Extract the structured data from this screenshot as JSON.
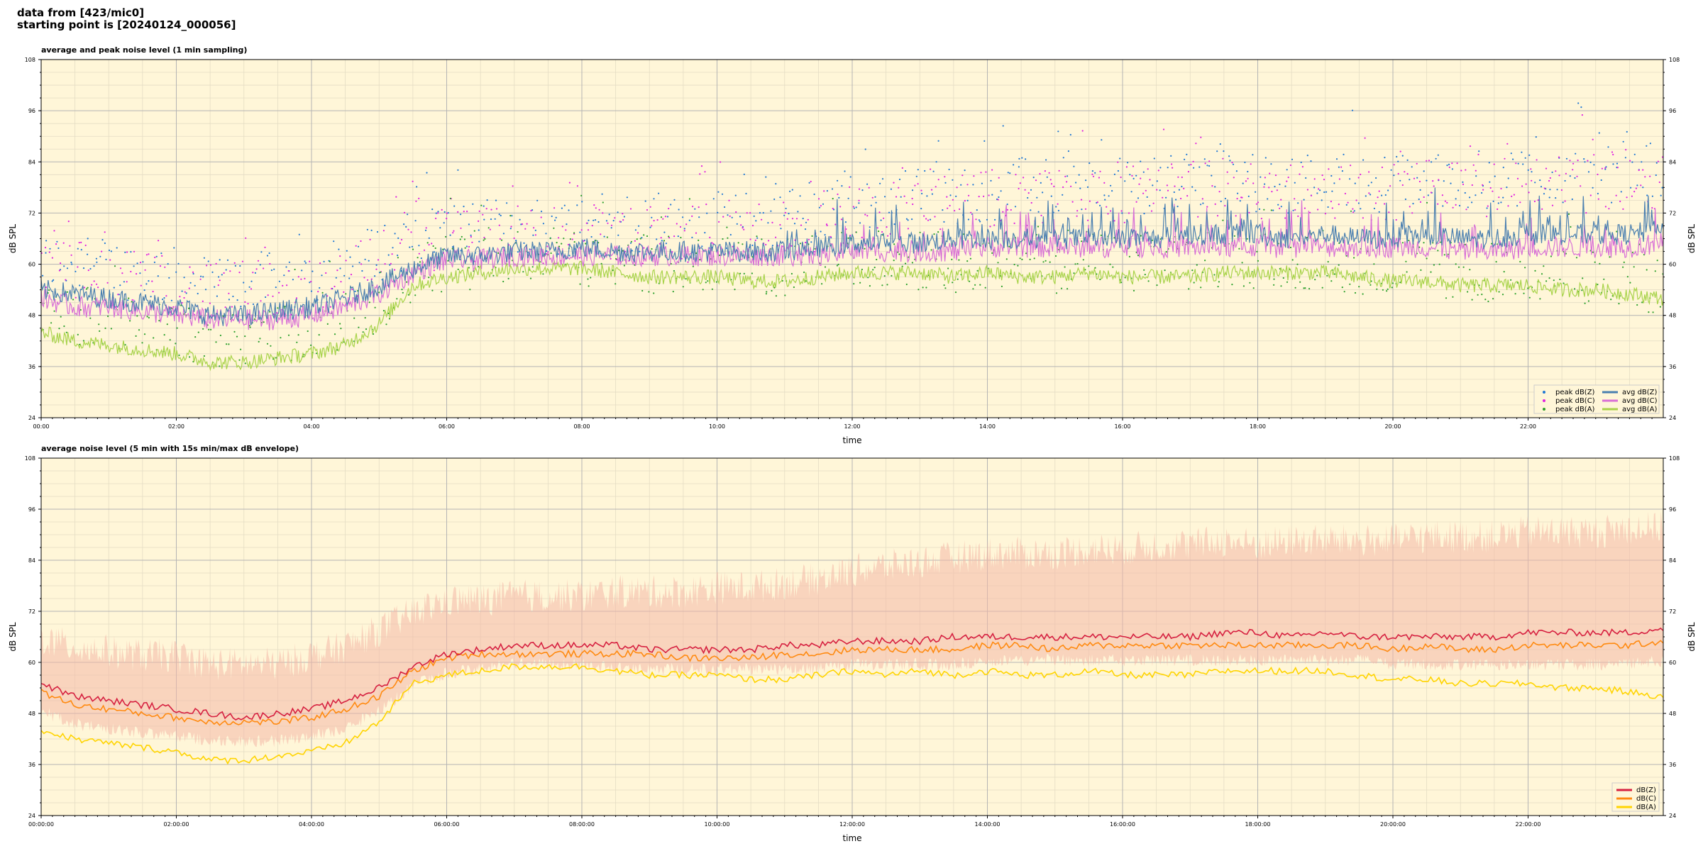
{
  "header": {
    "line1": "data from [423/mic0]",
    "line2": "starting point is [20240124_000056]"
  },
  "colors": {
    "background": "#fff6d8",
    "grid_major": "#b4b4b4",
    "grid_minor": "#e4dcc4",
    "peak_z": "#1f77d4",
    "peak_c": "#e020e0",
    "peak_a": "#2ca02c",
    "avg_z": "#4a7fb0",
    "avg_c": "#d86fd6",
    "avg_a": "#a8d34a",
    "env_fill": "#f4b8a8",
    "dbz": "#d62040",
    "dbc": "#ff8a10",
    "dba": "#ffd400"
  },
  "chart_data": [
    {
      "type": "line",
      "title": "average and peak noise level (1 min sampling)",
      "xlabel": "time",
      "ylabel": "dB SPL",
      "ylim": [
        24,
        108
      ],
      "xlim_hours": [
        0,
        24
      ],
      "yticks": [
        "24",
        "36",
        "48",
        "60",
        "72",
        "84",
        "96",
        "108"
      ],
      "xticks": [
        "00:00",
        "02:00",
        "04:00",
        "06:00",
        "08:00",
        "10:00",
        "12:00",
        "14:00",
        "16:00",
        "18:00",
        "20:00",
        "22:00"
      ],
      "grid": true,
      "legend_position": "lower-right",
      "legend": [
        "peak dB(Z)",
        "peak dB(C)",
        "peak dB(A)",
        "avg dB(Z)",
        "avg dB(C)",
        "avg dB(A)"
      ],
      "x_hours": [
        0,
        0.5,
        1,
        1.5,
        2,
        2.5,
        3,
        3.5,
        4,
        4.5,
        5,
        5.5,
        6,
        6.5,
        7,
        7.5,
        8,
        8.5,
        9,
        9.5,
        10,
        10.5,
        11,
        11.5,
        12,
        12.5,
        13,
        13.5,
        14,
        14.5,
        15,
        15.5,
        16,
        16.5,
        17,
        17.5,
        18,
        18.5,
        19,
        19.5,
        20,
        20.5,
        21,
        21.5,
        22,
        22.5,
        23,
        23.5,
        24
      ],
      "series": [
        {
          "name": "avg dB(Z)",
          "style": "line",
          "values": [
            54,
            53,
            52,
            51,
            50,
            48,
            48,
            49,
            50,
            52,
            55,
            59,
            62,
            62,
            63,
            63,
            64,
            63,
            63,
            63,
            63,
            63,
            63,
            64,
            65,
            65,
            65,
            66,
            66,
            66,
            66,
            66,
            66,
            66,
            67,
            67,
            67,
            66,
            67,
            66,
            66,
            67,
            66,
            66,
            67,
            67,
            67,
            67,
            68
          ]
        },
        {
          "name": "avg dB(C)",
          "style": "line",
          "values": [
            52,
            50,
            50,
            49,
            48,
            47,
            47,
            47,
            48,
            50,
            53,
            58,
            61,
            61,
            62,
            62,
            62,
            62,
            62,
            62,
            62,
            62,
            62,
            62,
            63,
            63,
            63,
            63,
            64,
            64,
            64,
            64,
            64,
            64,
            64,
            64,
            64,
            64,
            64,
            64,
            64,
            64,
            63,
            63,
            64,
            64,
            64,
            64,
            65
          ]
        },
        {
          "name": "avg dB(A)",
          "style": "line",
          "values": [
            44,
            42,
            41,
            40,
            39,
            37,
            37,
            38,
            39,
            41,
            46,
            55,
            57,
            58,
            59,
            59,
            59,
            58,
            57,
            57,
            57,
            56,
            56,
            57,
            58,
            58,
            58,
            57,
            58,
            57,
            57,
            58,
            57,
            57,
            57,
            58,
            58,
            58,
            58,
            57,
            56,
            56,
            55,
            55,
            55,
            54,
            54,
            53,
            52
          ]
        },
        {
          "name": "peak dB(Z)",
          "style": "scatter",
          "values": [
            60,
            61,
            59,
            58,
            57,
            55,
            56,
            56,
            57,
            59,
            63,
            66,
            68,
            68,
            69,
            69,
            69,
            69,
            69,
            69,
            70,
            70,
            71,
            72,
            74,
            75,
            76,
            76,
            77,
            78,
            78,
            78,
            78,
            79,
            79,
            80,
            79,
            79,
            80,
            79,
            79,
            80,
            79,
            80,
            81,
            81,
            81,
            82,
            82
          ]
        },
        {
          "name": "peak dB(C)",
          "style": "scatter",
          "values": [
            58,
            59,
            57,
            56,
            55,
            53,
            54,
            54,
            55,
            57,
            61,
            64,
            66,
            66,
            67,
            67,
            67,
            67,
            67,
            67,
            68,
            68,
            69,
            70,
            72,
            73,
            74,
            74,
            75,
            76,
            76,
            76,
            76,
            77,
            77,
            78,
            77,
            77,
            78,
            77,
            77,
            78,
            77,
            78,
            79,
            79,
            79,
            80,
            80
          ]
        },
        {
          "name": "peak dB(A)",
          "style": "scatter",
          "values": [
            50,
            48,
            47,
            46,
            45,
            43,
            43,
            44,
            45,
            47,
            51,
            58,
            60,
            61,
            62,
            62,
            62,
            61,
            60,
            60,
            60,
            60,
            59,
            60,
            61,
            61,
            61,
            60,
            61,
            60,
            60,
            61,
            60,
            60,
            60,
            61,
            61,
            61,
            61,
            60,
            59,
            59,
            58,
            58,
            58,
            57,
            57,
            56,
            55
          ]
        }
      ]
    },
    {
      "type": "line",
      "title": "average noise level (5 min with 15s min/max dB envelope)",
      "xlabel": "time",
      "ylabel": "dB SPL",
      "ylim": [
        24,
        108
      ],
      "xlim_hours": [
        0,
        24
      ],
      "yticks": [
        "24",
        "36",
        "48",
        "60",
        "72",
        "84",
        "96",
        "108"
      ],
      "xticks": [
        "00:00:00",
        "02:00:00",
        "04:00:00",
        "06:00:00",
        "08:00:00",
        "10:00:00",
        "12:00:00",
        "14:00:00",
        "16:00:00",
        "18:00:00",
        "20:00:00",
        "22:00:00"
      ],
      "grid": true,
      "legend_position": "lower-right",
      "legend": [
        "dB(Z)",
        "dB(C)",
        "dB(A)"
      ],
      "x_hours": [
        0,
        0.5,
        1,
        1.5,
        2,
        2.5,
        3,
        3.5,
        4,
        4.5,
        5,
        5.5,
        6,
        6.5,
        7,
        7.5,
        8,
        8.5,
        9,
        9.5,
        10,
        10.5,
        11,
        11.5,
        12,
        12.5,
        13,
        13.5,
        14,
        14.5,
        15,
        15.5,
        16,
        16.5,
        17,
        17.5,
        18,
        18.5,
        19,
        19.5,
        20,
        20.5,
        21,
        21.5,
        22,
        22.5,
        23,
        23.5,
        24
      ],
      "series": [
        {
          "name": "dB(Z)",
          "style": "line",
          "values": [
            55,
            52,
            51,
            50,
            49,
            48,
            47,
            48,
            49,
            51,
            54,
            59,
            62,
            63,
            64,
            64,
            64,
            64,
            63,
            63,
            63,
            63,
            64,
            64,
            65,
            65,
            65,
            66,
            66,
            66,
            66,
            66,
            66,
            66,
            66,
            67,
            67,
            66,
            67,
            66,
            66,
            66,
            66,
            66,
            67,
            67,
            67,
            67,
            68
          ]
        },
        {
          "name": "dB(C)",
          "style": "line",
          "values": [
            53,
            50,
            49,
            48,
            47,
            46,
            46,
            46,
            47,
            49,
            52,
            58,
            61,
            62,
            62,
            62,
            62,
            62,
            62,
            61,
            61,
            61,
            62,
            62,
            63,
            63,
            63,
            63,
            64,
            64,
            63,
            64,
            64,
            64,
            64,
            64,
            64,
            64,
            64,
            64,
            63,
            64,
            63,
            63,
            64,
            64,
            64,
            64,
            65
          ]
        },
        {
          "name": "dB(A)",
          "style": "line",
          "values": [
            44,
            42,
            41,
            40,
            39,
            37,
            37,
            38,
            39,
            41,
            46,
            55,
            57,
            58,
            59,
            59,
            59,
            58,
            57,
            57,
            57,
            56,
            56,
            57,
            58,
            57,
            58,
            57,
            58,
            57,
            57,
            58,
            57,
            57,
            57,
            58,
            58,
            58,
            58,
            57,
            56,
            56,
            55,
            55,
            55,
            54,
            54,
            53,
            52
          ]
        },
        {
          "name": "dB(Z) max envelope",
          "style": "fill",
          "values": [
            64,
            62,
            61,
            60,
            60,
            58,
            58,
            58,
            60,
            62,
            66,
            70,
            73,
            73,
            74,
            74,
            74,
            75,
            75,
            75,
            76,
            76,
            77,
            78,
            80,
            81,
            82,
            83,
            84,
            84,
            84,
            85,
            85,
            86,
            86,
            87,
            86,
            87,
            87,
            87,
            87,
            88,
            88,
            88,
            89,
            89,
            89,
            90,
            90
          ]
        },
        {
          "name": "dB(Z) min envelope",
          "style": "fill",
          "values": [
            50,
            47,
            46,
            45,
            44,
            43,
            43,
            43,
            44,
            46,
            50,
            56,
            59,
            60,
            61,
            61,
            61,
            60,
            60,
            60,
            60,
            60,
            60,
            60,
            61,
            61,
            61,
            61,
            62,
            62,
            62,
            62,
            62,
            62,
            62,
            62,
            62,
            62,
            62,
            62,
            61,
            61,
            61,
            61,
            61,
            61,
            61,
            61,
            62
          ]
        }
      ]
    }
  ]
}
